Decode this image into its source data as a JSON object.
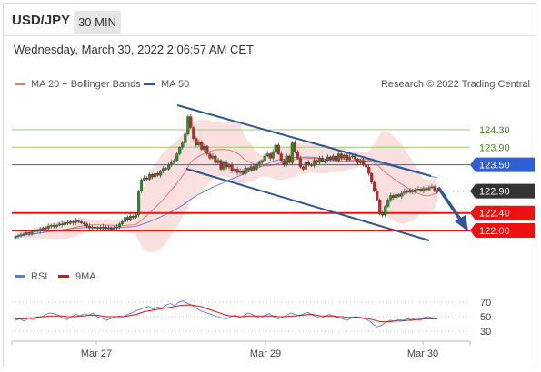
{
  "header": {
    "symbol": "USD/JPY",
    "timeframe": "30 MIN",
    "datetime": "Wednesday, March 30, 2022 2:06:57 AM CET"
  },
  "legend": {
    "ma20_bb": "MA 20 + Bollinger Bands",
    "ma50": "MA 50",
    "credit": "Research © 2022 Trading Central",
    "rsi": "RSI",
    "rsi_ma": "9MA"
  },
  "colors": {
    "up": "#2e8b2e",
    "down": "#cc2222",
    "ma20": "#e87878",
    "band_fill": "#f7c9c9",
    "ma50": "#6f86c6",
    "channel": "#2f5597",
    "support": "#ee1111",
    "pivot": "#2f5fd0",
    "resistance": "#9acc78",
    "current": "#333333",
    "rsi": "#5b7fd8",
    "rsi_ma": "#dd1111"
  },
  "chart_data": [
    {
      "type": "candlestick",
      "title": "USD/JPY 30 MIN",
      "x_ticks": [
        "Mar 27",
        "Mar 29",
        "Mar 30"
      ],
      "ylim": [
        121.75,
        124.5
      ],
      "horizontal_levels": [
        {
          "label": "124.30",
          "value": 124.3,
          "kind": "resistance"
        },
        {
          "label": "123.90",
          "value": 123.9,
          "kind": "resistance"
        },
        {
          "label": "123.50",
          "value": 123.5,
          "kind": "pivot"
        },
        {
          "label": "122.90",
          "value": 122.9,
          "kind": "current"
        },
        {
          "label": "122.40",
          "value": 122.4,
          "kind": "support"
        },
        {
          "label": "122.00",
          "value": 122.0,
          "kind": "support"
        }
      ],
      "close": [
        121.86,
        121.88,
        121.9,
        121.92,
        121.95,
        121.93,
        121.97,
        122.0,
        121.98,
        122.03,
        122.06,
        122.05,
        122.1,
        122.12,
        122.09,
        122.12,
        122.15,
        122.13,
        122.18,
        122.16,
        122.2,
        122.18,
        122.22,
        122.2,
        122.17,
        122.15,
        122.1,
        122.06,
        122.08,
        122.05,
        122.07,
        122.05,
        122.08,
        122.04,
        122.06,
        122.03,
        122.06,
        122.08,
        122.15,
        122.2,
        122.3,
        122.25,
        122.33,
        122.3,
        122.36,
        122.9,
        123.15,
        123.2,
        123.17,
        123.28,
        123.22,
        123.3,
        123.26,
        123.35,
        123.42,
        123.4,
        123.5,
        123.56,
        123.6,
        123.75,
        123.9,
        124.0,
        124.2,
        124.6,
        124.35,
        124.1,
        123.95,
        124.02,
        123.85,
        123.92,
        123.75,
        123.65,
        123.7,
        123.55,
        123.6,
        123.4,
        123.55,
        123.45,
        123.5,
        123.35,
        123.4,
        123.32,
        123.36,
        123.3,
        123.42,
        123.38,
        123.46,
        123.4,
        123.5,
        123.55,
        123.6,
        123.7,
        123.75,
        123.65,
        123.8,
        123.95,
        123.75,
        123.6,
        123.5,
        123.7,
        123.55,
        124.0,
        123.8,
        123.65,
        123.45,
        123.4,
        123.55,
        123.5,
        123.48,
        123.6,
        123.55,
        123.65,
        123.58,
        123.6,
        123.68,
        123.62,
        123.7,
        123.6,
        123.75,
        123.65,
        123.72,
        123.62,
        123.68,
        123.7,
        123.63,
        123.55,
        123.6,
        123.5,
        123.45,
        123.3,
        123.1,
        122.9,
        122.7,
        122.4,
        122.35,
        122.55,
        122.7,
        122.8,
        122.75,
        122.82,
        122.78,
        122.85,
        122.9,
        122.87,
        122.92,
        122.88,
        122.93,
        122.95,
        122.9,
        122.96,
        122.93,
        122.98,
        123.0,
        122.92,
        122.88
      ],
      "open_offset_note": "",
      "series": [
        {
          "name": "MA 20 + Bollinger Bands"
        },
        {
          "name": "MA 50"
        }
      ]
    },
    {
      "type": "line",
      "title": "RSI",
      "ylim": [
        20,
        80
      ],
      "y_ticks": [
        "70",
        "50",
        "30"
      ],
      "series": [
        {
          "name": "RSI",
          "values": [
            45,
            47,
            44,
            48,
            46,
            50,
            49,
            53,
            55,
            54,
            52,
            48,
            46,
            50,
            53,
            51,
            54,
            52,
            55,
            50,
            48,
            45,
            47,
            49,
            51,
            50,
            53,
            55,
            58,
            60,
            62,
            64,
            60,
            63,
            62,
            66,
            68,
            65,
            70,
            72,
            68,
            66,
            62,
            58,
            56,
            54,
            52,
            50,
            48,
            47,
            50,
            52,
            49,
            51,
            55,
            53,
            50,
            48,
            52,
            54,
            50,
            47,
            49,
            52,
            55,
            53,
            51,
            54,
            56,
            52,
            50,
            48,
            51,
            53,
            50,
            49,
            47,
            45,
            48,
            50,
            49,
            47,
            45,
            40,
            36,
            38,
            42,
            45,
            44,
            46,
            45,
            47,
            46,
            48,
            47,
            49,
            50,
            48,
            47
          ]
        },
        {
          "name": "9MA",
          "values": [
            47,
            47,
            47,
            48,
            48,
            49,
            50,
            50,
            51,
            51,
            51,
            51,
            50,
            50,
            50,
            51,
            51,
            52,
            52,
            52,
            51,
            50,
            50,
            50,
            50,
            50,
            51,
            52,
            53,
            55,
            57,
            58,
            59,
            60,
            61,
            62,
            63,
            64,
            65,
            66,
            66,
            66,
            65,
            64,
            62,
            60,
            58,
            56,
            54,
            52,
            51,
            51,
            50,
            50,
            51,
            51,
            51,
            51,
            51,
            51,
            51,
            50,
            50,
            50,
            51,
            51,
            52,
            52,
            53,
            53,
            52,
            51,
            51,
            51,
            51,
            50,
            50,
            49,
            49,
            49,
            49,
            48,
            47,
            46,
            44,
            43,
            43,
            43,
            44,
            44,
            44,
            45,
            45,
            46,
            46,
            47,
            47,
            47,
            47
          ]
        }
      ]
    }
  ]
}
